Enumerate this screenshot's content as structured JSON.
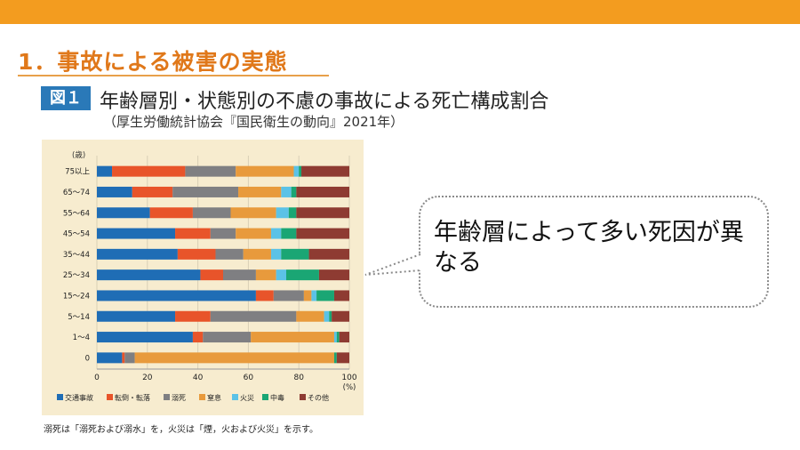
{
  "slide": {
    "section_title": "1．事故による被害の実態",
    "figure_badge": "図１",
    "figure_title": "年齢層別・状態別の不慮の事故による死亡構成割合",
    "figure_source": "（厚生労働統計協会『国民衛生の動向』2021年）",
    "callout_text": "年齢層によって多い死因が異なる",
    "footnote": "溺死は「溺死および溺水」を，火災は「煙，火および火災」を示す。"
  },
  "colors": {
    "top_bar": "#f39c1f",
    "title": "#e0781a",
    "badge": "#2a79b8",
    "chart_background": "#f7eccf"
  },
  "chart_data": {
    "type": "bar",
    "orientation": "horizontal",
    "stacked": true,
    "y_unit": "(歳)",
    "x_unit": "(%)",
    "xlim": [
      0,
      100
    ],
    "x_ticks": [
      "0",
      "20",
      "40",
      "60",
      "80",
      "100"
    ],
    "categories": [
      "75以上",
      "65～74",
      "55～64",
      "45～54",
      "35～44",
      "25～34",
      "15～24",
      "5～14",
      "1～4",
      "0"
    ],
    "series": [
      {
        "name": "交通事故",
        "color": "#1f6db5",
        "values": [
          6,
          14,
          21,
          31,
          32,
          41,
          63,
          31,
          38,
          10
        ]
      },
      {
        "name": "転倒・転落",
        "color": "#e8542a",
        "values": [
          29,
          16,
          17,
          14,
          15,
          9,
          7,
          14,
          4,
          1
        ]
      },
      {
        "name": "溺死",
        "color": "#7f7f82",
        "values": [
          20,
          26,
          15,
          10,
          11,
          13,
          12,
          34,
          19,
          4
        ]
      },
      {
        "name": "窒息",
        "color": "#e89a3c",
        "values": [
          23,
          17,
          18,
          14,
          11,
          8,
          3,
          11,
          33,
          79
        ]
      },
      {
        "name": "火災",
        "color": "#5bc2e7",
        "values": [
          2,
          4,
          5,
          4,
          4,
          4,
          2,
          2,
          1,
          0
        ]
      },
      {
        "name": "中毒",
        "color": "#1aa674",
        "values": [
          1,
          2,
          3,
          6,
          11,
          13,
          7,
          1,
          1,
          1
        ]
      },
      {
        "name": "その他",
        "color": "#8e3b32",
        "values": [
          19,
          21,
          21,
          21,
          16,
          12,
          6,
          7,
          4,
          5
        ]
      }
    ]
  }
}
